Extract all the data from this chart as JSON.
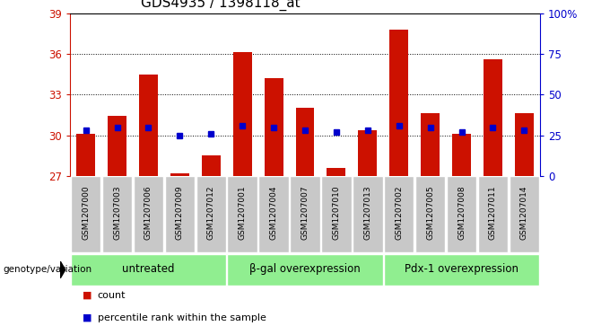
{
  "title": "GDS4935 / 1398118_at",
  "samples": [
    "GSM1207000",
    "GSM1207003",
    "GSM1207006",
    "GSM1207009",
    "GSM1207012",
    "GSM1207001",
    "GSM1207004",
    "GSM1207007",
    "GSM1207010",
    "GSM1207013",
    "GSM1207002",
    "GSM1207005",
    "GSM1207008",
    "GSM1207011",
    "GSM1207014"
  ],
  "counts": [
    30.1,
    31.4,
    34.5,
    27.2,
    28.5,
    36.1,
    34.2,
    32.0,
    27.6,
    30.4,
    37.8,
    31.6,
    30.1,
    35.6,
    31.6
  ],
  "percentiles": [
    28,
    30,
    30,
    25,
    26,
    31,
    30,
    28,
    27,
    28,
    31,
    30,
    27,
    30,
    28
  ],
  "groups": [
    {
      "label": "untreated",
      "start": 0,
      "end": 5
    },
    {
      "label": "β-gal overexpression",
      "start": 5,
      "end": 10
    },
    {
      "label": "Pdx-1 overexpression",
      "start": 10,
      "end": 15
    }
  ],
  "y_min": 27,
  "y_max": 39,
  "y_ticks": [
    27,
    30,
    33,
    36,
    39
  ],
  "right_y_ticks": [
    0,
    25,
    50,
    75,
    100
  ],
  "right_y_labels": [
    "0",
    "25",
    "50",
    "75",
    "100%"
  ],
  "bar_color": "#cc1100",
  "percentile_color": "#0000cc",
  "group_bg": "#90ee90",
  "sample_box_bg": "#c8c8c8",
  "left_axis_color": "#cc1100",
  "right_axis_color": "#0000cc",
  "legend_bar_label": "count",
  "legend_pct_label": "percentile rank within the sample",
  "genotype_label": "genotype/variation"
}
